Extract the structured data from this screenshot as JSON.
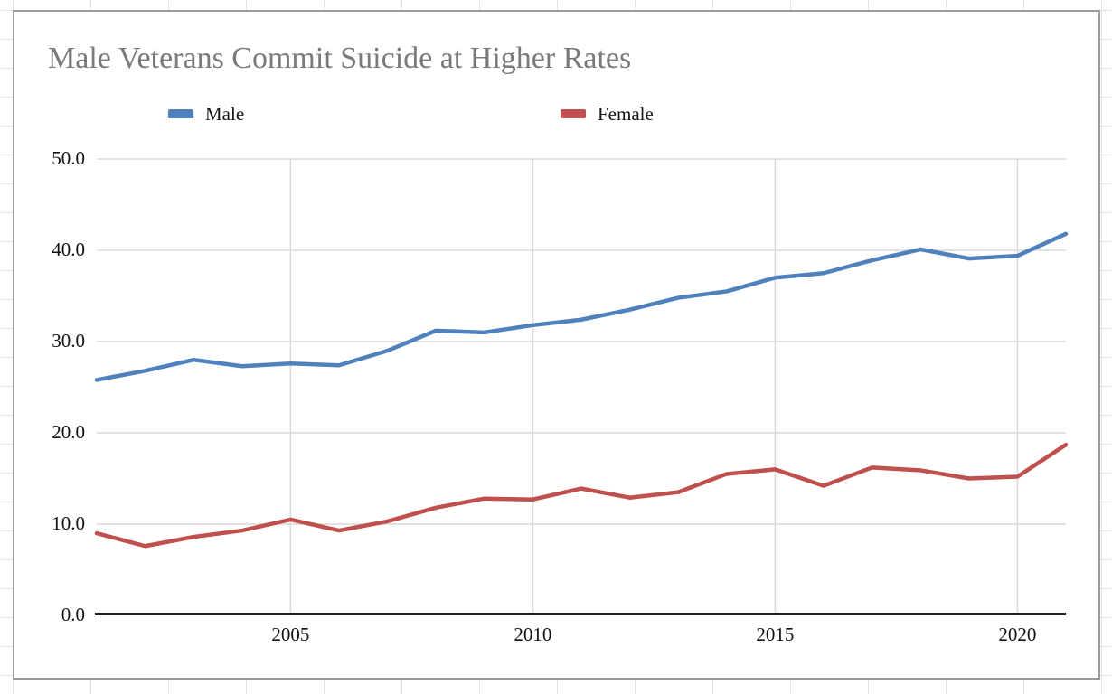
{
  "window": {
    "background": "spreadsheet-grid",
    "grid_line_color": "#e3e3e3",
    "chart_border_color": "#9b9b9b"
  },
  "chart_data": {
    "type": "line",
    "title": "Male Veterans Commit Suicide at Higher Rates",
    "title_color": "#7a7a7a",
    "xlabel": "",
    "ylabel": "",
    "x_range": [
      2001,
      2021
    ],
    "ylim": [
      0,
      50
    ],
    "grid": true,
    "legend_position": "top",
    "grid_color": "#d9d9d9",
    "axis_color": "#1f1f1f",
    "tick_label_color": "#111111",
    "x": [
      2001,
      2002,
      2003,
      2004,
      2005,
      2006,
      2007,
      2008,
      2009,
      2010,
      2011,
      2012,
      2013,
      2014,
      2015,
      2016,
      2017,
      2018,
      2019,
      2020,
      2021
    ],
    "series": [
      {
        "name": "Male",
        "color": "#4F81BD",
        "values": [
          25.8,
          26.8,
          28.0,
          27.3,
          27.6,
          27.4,
          29.0,
          31.2,
          31.0,
          31.8,
          32.4,
          33.5,
          34.8,
          35.5,
          37.0,
          37.5,
          38.9,
          40.1,
          39.1,
          39.4,
          41.8
        ]
      },
      {
        "name": "Female",
        "color": "#C0504D",
        "values": [
          9.0,
          7.6,
          8.6,
          9.3,
          10.5,
          9.3,
          10.3,
          11.8,
          12.8,
          12.7,
          13.9,
          12.9,
          13.5,
          15.5,
          16.0,
          14.2,
          16.2,
          15.9,
          15.0,
          15.2,
          18.7
        ]
      }
    ],
    "xticks": [
      {
        "value": 2005,
        "label": "2005"
      },
      {
        "value": 2010,
        "label": "2010"
      },
      {
        "value": 2015,
        "label": "2015"
      },
      {
        "value": 2020,
        "label": "2020"
      }
    ],
    "yticks": [
      {
        "value": 0,
        "label": "0.0"
      },
      {
        "value": 10,
        "label": "10.0"
      },
      {
        "value": 20,
        "label": "20.0"
      },
      {
        "value": 30,
        "label": "30.0"
      },
      {
        "value": 40,
        "label": "40.0"
      },
      {
        "value": 50,
        "label": "50.0"
      }
    ]
  }
}
